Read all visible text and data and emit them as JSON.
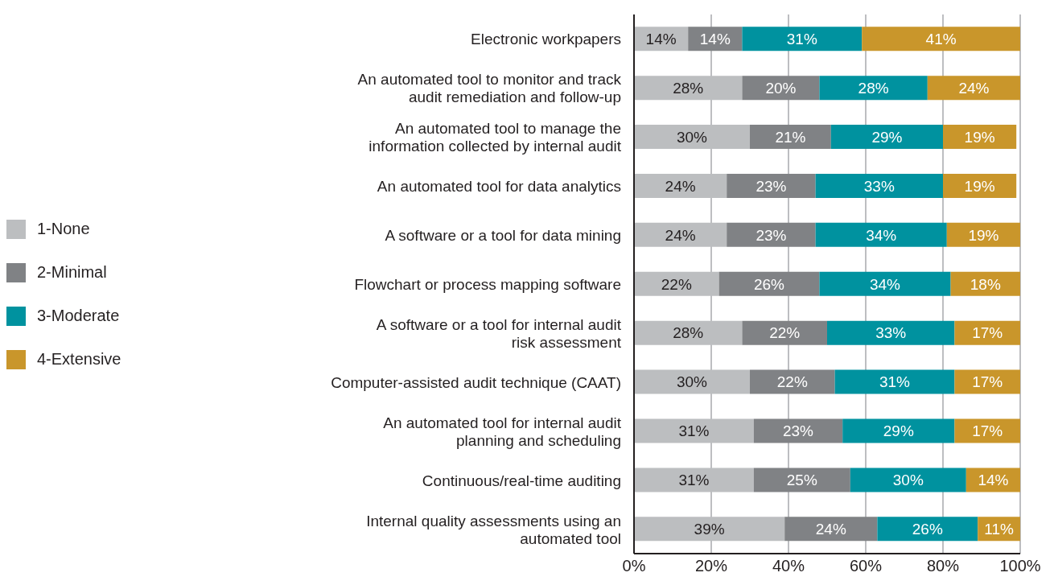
{
  "chart_data": {
    "type": "bar",
    "orientation": "horizontal",
    "stacked": true,
    "legend": "left",
    "grid": "x",
    "categories": [
      "Electronic workpapers",
      "An automated tool to monitor and track audit remediation and follow-up",
      "An automated tool to manage the information collected by internal audit",
      "An automated tool for data analytics",
      "A software or a tool for data mining",
      "Flowchart or process mapping software",
      "A software or a tool for internal audit risk assessment",
      "Computer-assisted audit technique (CAAT)",
      "An automated tool for internal audit planning and scheduling",
      "Continuous/real-time auditing",
      "Internal quality assessments using an automated tool"
    ],
    "xlim": [
      0,
      100
    ],
    "xticks": [
      {
        "value": 0,
        "label": "0%"
      },
      {
        "value": 20,
        "label": "20%"
      },
      {
        "value": 40,
        "label": "40%"
      },
      {
        "value": 60,
        "label": "60%"
      },
      {
        "value": 80,
        "label": "80%"
      },
      {
        "value": 100,
        "label": "100%"
      }
    ],
    "series": [
      {
        "name": "1-None",
        "color": "#bcbec0",
        "values": [
          14,
          28,
          30,
          24,
          24,
          22,
          28,
          30,
          31,
          31,
          39
        ],
        "value_labels": [
          "14%",
          "28%",
          "30%",
          "24%",
          "24%",
          "22%",
          "28%",
          "30%",
          "31%",
          "31%",
          "39%"
        ]
      },
      {
        "name": "2-Minimal",
        "color": "#808285",
        "values": [
          14,
          20,
          21,
          23,
          23,
          26,
          22,
          22,
          23,
          25,
          24
        ],
        "value_labels": [
          "14%",
          "20%",
          "21%",
          "23%",
          "23%",
          "26%",
          "22%",
          "22%",
          "23%",
          "25%",
          "24%"
        ]
      },
      {
        "name": "3-Moderate",
        "color": "#00929f",
        "values": [
          31,
          28,
          29,
          33,
          34,
          34,
          33,
          31,
          29,
          30,
          26
        ],
        "value_labels": [
          "31%",
          "28%",
          "29%",
          "33%",
          "34%",
          "34%",
          "33%",
          "31%",
          "29%",
          "30%",
          "26%"
        ]
      },
      {
        "name": "4-Extensive",
        "color": "#c9962b",
        "values": [
          41,
          24,
          19,
          19,
          19,
          18,
          17,
          17,
          17,
          14,
          11
        ],
        "value_labels": [
          "41%",
          "24%",
          "19%",
          "19%",
          "19%",
          "18%",
          "17%",
          "17%",
          "17%",
          "14%",
          "11%"
        ]
      }
    ]
  }
}
